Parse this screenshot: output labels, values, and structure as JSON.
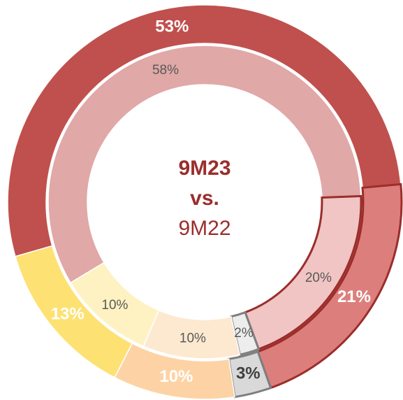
{
  "chart_data": {
    "type": "donut",
    "series": [
      {
        "name": "9M23",
        "values": [
          53,
          21,
          3,
          10,
          13
        ],
        "value_labels": [
          "53%",
          "21%",
          "3%",
          "10%",
          "13%"
        ],
        "colors": [
          "#c0504d",
          "#dc7f7c",
          "#d9d9d9",
          "#fdd3a5",
          "#fee173"
        ]
      },
      {
        "name": "9M22",
        "values": [
          58,
          20,
          2,
          10,
          10
        ],
        "value_labels": [
          "58%",
          "20%",
          "2%",
          "10%",
          "10%"
        ],
        "colors": [
          "#e0a8a7",
          "#f0c5c4",
          "#ededed",
          "#fde9d0",
          "#fff2c2"
        ]
      }
    ],
    "center_label": "vs."
  }
}
